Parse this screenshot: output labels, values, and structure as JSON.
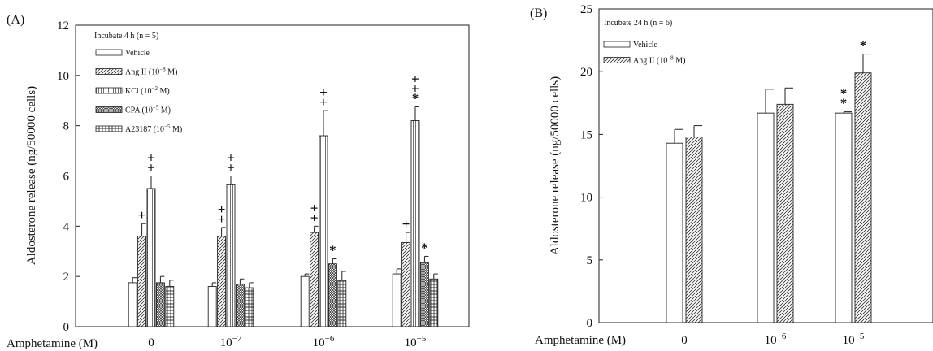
{
  "chart_data": [
    {
      "panel_label": "(A)",
      "type": "bar",
      "legend_title": "Incubate 4 h (n = 5)",
      "xlabel_prefix": "Amphetamine (M)",
      "ylabel": "Aldosterone release (ng/50000 cells)",
      "ylim": [
        0,
        12
      ],
      "yticks": [
        "0",
        "2",
        "4",
        "6",
        "8",
        "10",
        "12"
      ],
      "categories": [
        "0",
        "10^-7",
        "10^-6",
        "10^-5"
      ],
      "legend_placement": "top-left",
      "series": [
        {
          "name": "Vehicle",
          "pattern": "empty",
          "values": [
            1.75,
            1.6,
            2.0,
            2.1
          ],
          "errors": [
            0.2,
            0.15,
            0.1,
            0.2
          ],
          "markers": [
            "",
            "",
            "",
            ""
          ]
        },
        {
          "name": "Ang II (10^-8 M)",
          "pattern": "diag",
          "values": [
            3.6,
            3.6,
            3.75,
            3.35
          ],
          "errors": [
            0.5,
            0.35,
            0.25,
            0.4
          ],
          "markers": [
            "+",
            "++",
            "++",
            "+"
          ]
        },
        {
          "name": "KCl (10^-2 M)",
          "pattern": "vert",
          "values": [
            5.5,
            5.65,
            7.6,
            8.2
          ],
          "errors": [
            0.5,
            0.35,
            1.0,
            0.55
          ],
          "markers": [
            "++",
            "++",
            "++",
            "++*"
          ]
        },
        {
          "name": "CPA (10^-5 M)",
          "pattern": "cross",
          "values": [
            1.75,
            1.7,
            2.5,
            2.55
          ],
          "errors": [
            0.25,
            0.2,
            0.2,
            0.25
          ],
          "markers": [
            "",
            "",
            "*",
            "*"
          ]
        },
        {
          "name": "A23187 (10^-5 M)",
          "pattern": "grid",
          "values": [
            1.6,
            1.55,
            1.85,
            1.9
          ],
          "errors": [
            0.25,
            0.2,
            0.35,
            0.2
          ],
          "markers": [
            "",
            "",
            "",
            ""
          ]
        }
      ],
      "grid": false
    },
    {
      "panel_label": "(B)",
      "type": "bar",
      "legend_title": "Incubate 24 h (n = 6)",
      "xlabel_prefix": "Amphetamine (M)",
      "ylabel": "Aldosterone release (ng/50000 cells)",
      "ylim": [
        0,
        25
      ],
      "yticks": [
        "0",
        "5",
        "10",
        "15",
        "20",
        "25"
      ],
      "categories": [
        "0",
        "10^-6",
        "10^-5"
      ],
      "legend_placement": "top-left",
      "series": [
        {
          "name": "Vehicle",
          "pattern": "empty",
          "values": [
            14.3,
            16.7,
            16.7
          ],
          "errors": [
            1.1,
            1.9,
            0.1
          ],
          "markers": [
            "",
            "",
            "**"
          ]
        },
        {
          "name": "Ang II (10^-8 M)",
          "pattern": "diag",
          "values": [
            14.8,
            17.4,
            19.9
          ],
          "errors": [
            0.9,
            1.3,
            1.5
          ],
          "markers": [
            "",
            "",
            "*"
          ]
        }
      ],
      "grid": false
    }
  ]
}
